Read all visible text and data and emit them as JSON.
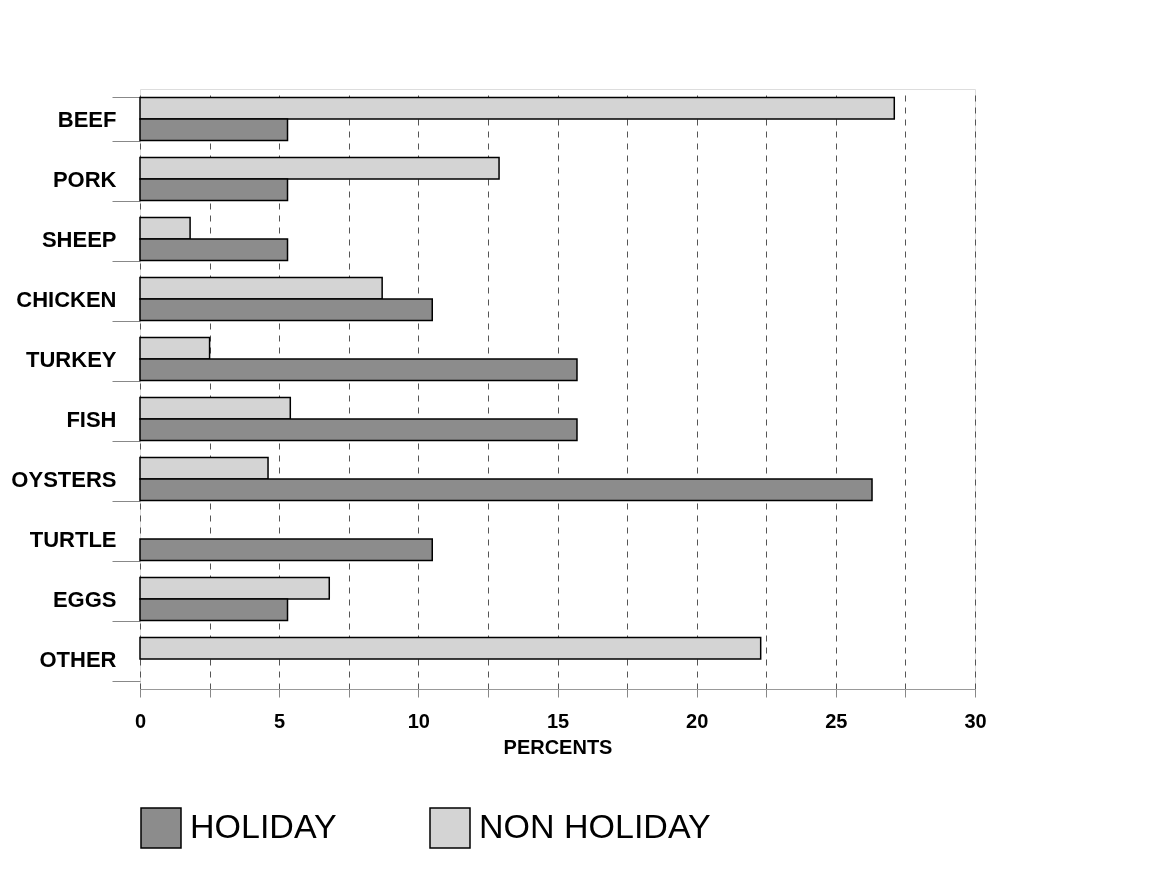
{
  "chart_data": {
    "type": "bar",
    "orientation": "horizontal",
    "xlabel": "PERCENTS",
    "categories": [
      "BEEF",
      "PORK",
      "SHEEP",
      "CHICKEN",
      "TURKEY",
      "FISH",
      "OYSTERS",
      "TURTLE",
      "EGGS",
      "OTHER"
    ],
    "series": [
      {
        "name": "NON HOLIDAY",
        "color": "#d4d4d4",
        "values": [
          27.1,
          12.9,
          1.8,
          8.7,
          2.5,
          5.4,
          4.6,
          0,
          6.8,
          22.3
        ]
      },
      {
        "name": "HOLIDAY",
        "color": "#8c8c8c",
        "values": [
          5.3,
          5.3,
          5.3,
          10.5,
          15.7,
          15.7,
          26.3,
          10.5,
          5.3,
          0
        ]
      }
    ],
    "xlim": [
      0,
      30
    ],
    "xticks": [
      0,
      {
        "value": 2.5,
        "label": null
      },
      5,
      {
        "value": 7.5,
        "label": null
      },
      10,
      {
        "value": 12.5,
        "label": null
      },
      15,
      {
        "value": 17.5,
        "label": null
      },
      20,
      {
        "value": 22.5,
        "label": null
      },
      25,
      {
        "value": 27.5,
        "label": null
      },
      30
    ],
    "grid": "x",
    "legend": "bottom"
  }
}
